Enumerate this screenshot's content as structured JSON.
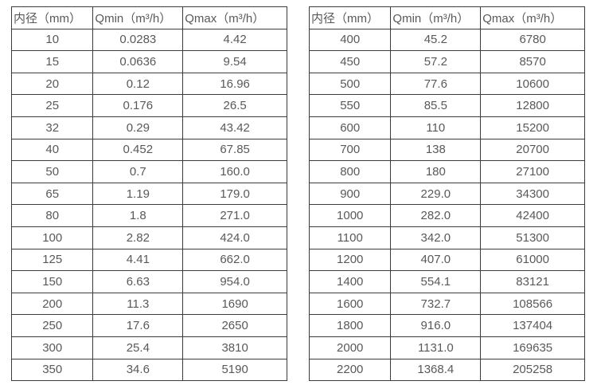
{
  "page": {
    "background_color": "#ffffff",
    "text_color": "#595959",
    "border_color": "#3c3c3c"
  },
  "tables": [
    {
      "headers": [
        "内径（mm）",
        "Qmin（m³/h）",
        "Qmax（m³/h）"
      ],
      "rows": [
        [
          "10",
          "0.0283",
          "4.42"
        ],
        [
          "15",
          "0.0636",
          "9.54"
        ],
        [
          "20",
          "0.12",
          "16.96"
        ],
        [
          "25",
          "0.176",
          "26.5"
        ],
        [
          "32",
          "0.29",
          "43.42"
        ],
        [
          "40",
          "0.452",
          "67.85"
        ],
        [
          "50",
          "0.7",
          "160.0"
        ],
        [
          "65",
          "1.19",
          "179.0"
        ],
        [
          "80",
          "1.8",
          "271.0"
        ],
        [
          "100",
          "2.82",
          "424.0"
        ],
        [
          "125",
          "4.41",
          "662.0"
        ],
        [
          "150",
          "6.63",
          "954.0"
        ],
        [
          "200",
          "11.3",
          "1690"
        ],
        [
          "250",
          "17.6",
          "2650"
        ],
        [
          "300",
          "25.4",
          "3810"
        ],
        [
          "350",
          "34.6",
          "5190"
        ]
      ]
    },
    {
      "headers": [
        "内径（mm）",
        "Qmin（m³/h）",
        "Qmax（m³/h）"
      ],
      "rows": [
        [
          "400",
          "45.2",
          "6780"
        ],
        [
          "450",
          "57.2",
          "8570"
        ],
        [
          "500",
          "77.6",
          "10600"
        ],
        [
          "550",
          "85.5",
          "12800"
        ],
        [
          "600",
          "110",
          "15200"
        ],
        [
          "700",
          "138",
          "20700"
        ],
        [
          "800",
          "180",
          "27100"
        ],
        [
          "900",
          "229.0",
          "34300"
        ],
        [
          "1000",
          "282.0",
          "42400"
        ],
        [
          "1100",
          "342.0",
          "51300"
        ],
        [
          "1200",
          "407.0",
          "61000"
        ],
        [
          "1400",
          "554.1",
          "83121"
        ],
        [
          "1600",
          "732.7",
          "108566"
        ],
        [
          "1800",
          "916.0",
          "137404"
        ],
        [
          "2000",
          "1131.0",
          "169635"
        ],
        [
          "2200",
          "1368.4",
          "205258"
        ]
      ]
    }
  ]
}
